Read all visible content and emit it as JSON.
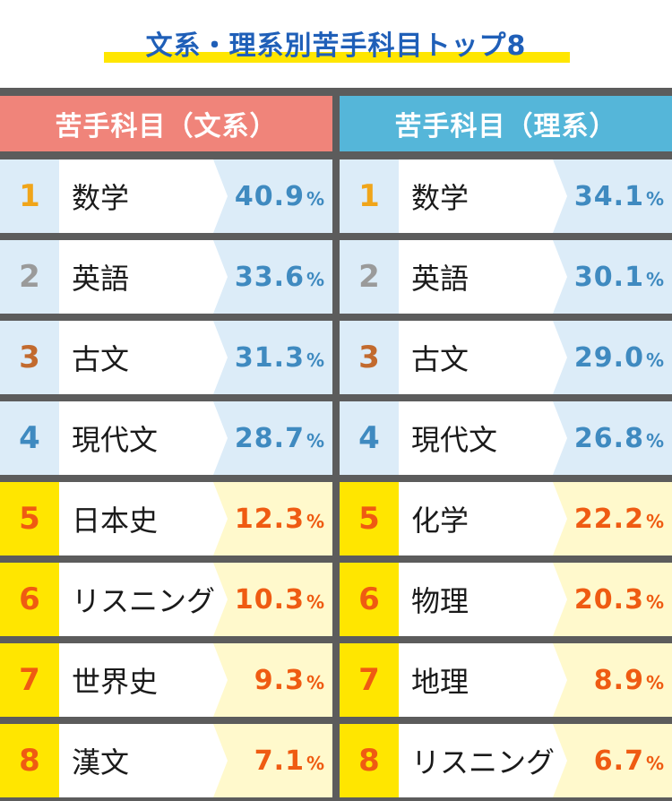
{
  "title": "文系・理系別苦手科目トップ8",
  "colors": {
    "title": "#1f5fb8",
    "title_underline": "#ffe600",
    "board_gray": "#5c5c5c",
    "left_header": "#f0847a",
    "right_header": "#55b6d9",
    "top4_rank_bg": "#dcecf8",
    "top4_value_bg": "#dcecf8",
    "top4_value_text": "#3f8ac0",
    "bottom4_rank_bg": "#ffe600",
    "bottom4_value_bg": "#fff9cc",
    "bottom4_value_text": "#ef5b12",
    "rank1": "#f0a51a",
    "rank2": "#9a9a9a",
    "rank3": "#c26a2e",
    "rank4": "#3f8ac0",
    "rank5to8": "#ef5b12"
  },
  "left": {
    "header": "苦手科目（文系）",
    "rows": [
      {
        "rank": "1",
        "subject": "数学",
        "value": "40.9",
        "unit": "%"
      },
      {
        "rank": "2",
        "subject": "英語",
        "value": "33.6",
        "unit": "%"
      },
      {
        "rank": "3",
        "subject": "古文",
        "value": "31.3",
        "unit": "%"
      },
      {
        "rank": "4",
        "subject": "現代文",
        "value": "28.7",
        "unit": "%"
      },
      {
        "rank": "5",
        "subject": "日本史",
        "value": "12.3",
        "unit": "%"
      },
      {
        "rank": "6",
        "subject": "リスニング",
        "value": "10.3",
        "unit": "%"
      },
      {
        "rank": "7",
        "subject": "世界史",
        "value": "9.3",
        "unit": "%"
      },
      {
        "rank": "8",
        "subject": "漢文",
        "value": "7.1",
        "unit": "%"
      }
    ]
  },
  "right": {
    "header": "苦手科目（理系）",
    "rows": [
      {
        "rank": "1",
        "subject": "数学",
        "value": "34.1",
        "unit": "%"
      },
      {
        "rank": "2",
        "subject": "英語",
        "value": "30.1",
        "unit": "%"
      },
      {
        "rank": "3",
        "subject": "古文",
        "value": "29.0",
        "unit": "%"
      },
      {
        "rank": "4",
        "subject": "現代文",
        "value": "26.8",
        "unit": "%"
      },
      {
        "rank": "5",
        "subject": "化学",
        "value": "22.2",
        "unit": "%"
      },
      {
        "rank": "6",
        "subject": "物理",
        "value": "20.3",
        "unit": "%"
      },
      {
        "rank": "7",
        "subject": "地理",
        "value": "8.9",
        "unit": "%"
      },
      {
        "rank": "8",
        "subject": "リスニング",
        "value": "6.7",
        "unit": "%"
      }
    ]
  }
}
